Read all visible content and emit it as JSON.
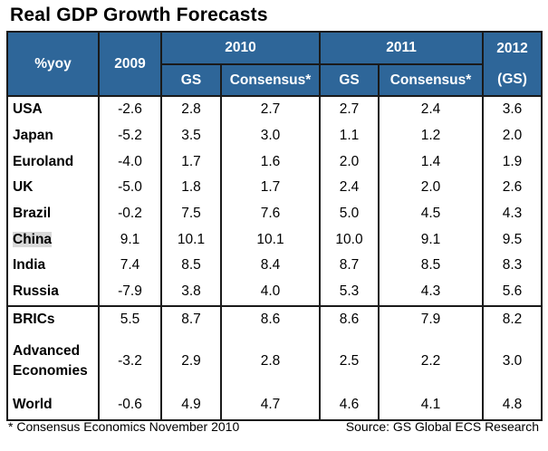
{
  "title": "Real GDP Growth Forecasts",
  "chart_data": {
    "type": "table",
    "title": "Real GDP Growth Forecasts",
    "header": {
      "row_label": "%yoy",
      "col_2009": "2009",
      "group_2010": "2010",
      "group_2011": "2011",
      "col_2012": "2012",
      "col_2012_sub": "(GS)",
      "gs": "GS",
      "consensus": "Consensus*"
    },
    "columns": [
      "2009",
      "2010 GS",
      "2010 Consensus*",
      "2011 GS",
      "2011 Consensus*",
      "2012 (GS)"
    ],
    "rows": [
      {
        "label": "USA",
        "values": [
          "-2.6",
          "2.8",
          "2.7",
          "2.7",
          "2.4",
          "3.6"
        ]
      },
      {
        "label": "Japan",
        "values": [
          "-5.2",
          "3.5",
          "3.0",
          "1.1",
          "1.2",
          "2.0"
        ]
      },
      {
        "label": "Euroland",
        "values": [
          "-4.0",
          "1.7",
          "1.6",
          "2.0",
          "1.4",
          "1.9"
        ]
      },
      {
        "label": "UK",
        "values": [
          "-5.0",
          "1.8",
          "1.7",
          "2.4",
          "2.0",
          "2.6"
        ]
      },
      {
        "label": "Brazil",
        "values": [
          "-0.2",
          "7.5",
          "7.6",
          "5.0",
          "4.5",
          "4.3"
        ]
      },
      {
        "label": "China",
        "values": [
          "9.1",
          "10.1",
          "10.1",
          "10.0",
          "9.1",
          "9.5"
        ],
        "highlighted": true
      },
      {
        "label": "India",
        "values": [
          "7.4",
          "8.5",
          "8.4",
          "8.7",
          "8.5",
          "8.3"
        ]
      },
      {
        "label": "Russia",
        "values": [
          "-7.9",
          "3.8",
          "4.0",
          "5.3",
          "4.3",
          "5.6"
        ]
      },
      {
        "label": "BRICs",
        "values": [
          "5.5",
          "8.7",
          "8.6",
          "8.6",
          "7.9",
          "8.2"
        ]
      },
      {
        "label": "Advanced Economies",
        "label_line1": "Advanced",
        "label_line2": "Economies",
        "values": [
          "-3.2",
          "2.9",
          "2.8",
          "2.5",
          "2.2",
          "3.0"
        ]
      },
      {
        "label": "World",
        "values": [
          "-0.6",
          "4.9",
          "4.7",
          "4.6",
          "4.1",
          "4.8"
        ]
      }
    ],
    "colors": {
      "header_bg": "#2e6699",
      "header_text": "#ffffff",
      "highlight": "#d9d9d9"
    }
  },
  "footnote": "* Consensus Economics November 2010",
  "source": "Source: GS Global ECS Research"
}
